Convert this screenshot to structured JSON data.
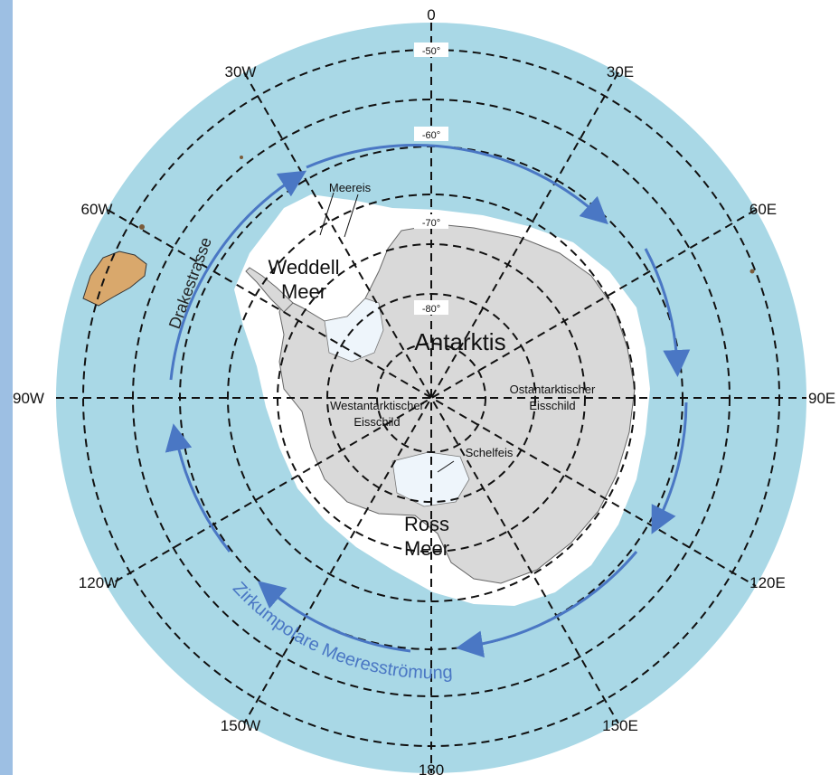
{
  "map": {
    "longitude_labels": {
      "lon_0": "0",
      "lon_30e": "30E",
      "lon_60e": "60E",
      "lon_90e": "90E",
      "lon_120e": "120E",
      "lon_150e": "150E",
      "lon_180": "180",
      "lon_150w": "150W",
      "lon_120w": "120W",
      "lon_90w": "90W",
      "lon_60w": "60W",
      "lon_30w": "30W"
    },
    "latitude_labels": {
      "lat_50": "-50°",
      "lat_60": "-60°",
      "lat_70": "-70°",
      "lat_80": "-80°"
    },
    "regions": {
      "continent": "Antarktis",
      "weddell_line1": "Weddell",
      "weddell_line2": "Meer",
      "ross_line1": "Ross",
      "ross_line2": "Meer",
      "west_ice_line1": "Westantarktischer",
      "west_ice_line2": "Eisschild",
      "east_ice_line1": "Ostantarktischer",
      "east_ice_line2": "Eisschild",
      "ice_shelf": "Schelfeis",
      "sea_ice": "Meereis",
      "strait": "Drakestrasse",
      "current": "Zirkumpolare Meeresströmung"
    },
    "colors": {
      "ocean": "#a9d8e6",
      "sea_ice": "#ffffff",
      "land": "#d9d9d9",
      "ice_shelf": "#eef5fb",
      "current_arrow": "#4a77c4",
      "south_america": "#d9a86c"
    }
  }
}
